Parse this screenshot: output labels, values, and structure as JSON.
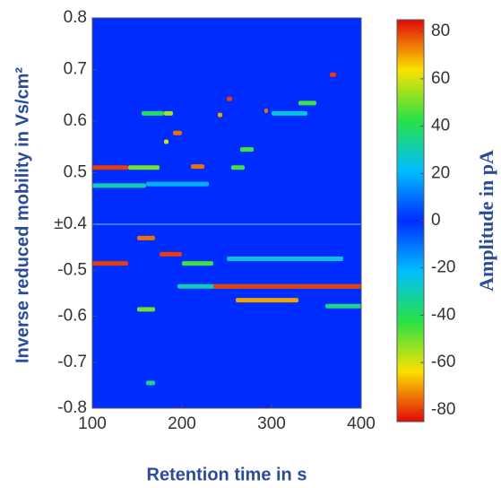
{
  "chart_data": {
    "type": "heatmap",
    "x_label": "Retention time in s",
    "y_label": "Inverse reduced mobility in Vs/cm²",
    "colorbar_label": "Amplitude in pA",
    "xlim": [
      100,
      400
    ],
    "xticks": [
      100,
      200,
      300,
      400
    ],
    "ylim_top": [
      0.4,
      0.8
    ],
    "ylim_bottom": [
      -0.8,
      -0.4
    ],
    "yticks": [
      0.8,
      0.7,
      0.6,
      0.5,
      {
        "value": 0.4,
        "label": "±0.4"
      },
      -0.5,
      -0.6,
      -0.7,
      -0.8
    ],
    "clim": [
      -85,
      85
    ],
    "cticks": [
      80,
      60,
      40,
      20,
      0,
      -20,
      -40,
      -60,
      -80
    ],
    "features": [
      {
        "x": [
          100,
          140
        ],
        "y": 0.51,
        "amp": 80
      },
      {
        "x": [
          140,
          175
        ],
        "y": 0.51,
        "amp": 50
      },
      {
        "x": [
          100,
          160
        ],
        "y": 0.475,
        "amp": 30
      },
      {
        "x": [
          160,
          230
        ],
        "y": 0.478,
        "amp": 20
      },
      {
        "x": [
          155,
          180
        ],
        "y": 0.615,
        "amp": 40
      },
      {
        "x": [
          180,
          190
        ],
        "y": 0.615,
        "amp": 55
      },
      {
        "x": [
          190,
          200
        ],
        "y": 0.577,
        "amp": 75
      },
      {
        "x": [
          180,
          185
        ],
        "y": 0.56,
        "amp": 60
      },
      {
        "x": [
          210,
          225
        ],
        "y": 0.512,
        "amp": 75
      },
      {
        "x": [
          240,
          245
        ],
        "y": 0.612,
        "amp": 70
      },
      {
        "x": [
          250,
          256
        ],
        "y": 0.643,
        "amp": 80
      },
      {
        "x": [
          292,
          296
        ],
        "y": 0.62,
        "amp": 75
      },
      {
        "x": [
          365,
          372
        ],
        "y": 0.69,
        "amp": 80
      },
      {
        "x": [
          330,
          350
        ],
        "y": 0.635,
        "amp": 45
      },
      {
        "x": [
          265,
          280
        ],
        "y": 0.545,
        "amp": 45
      },
      {
        "x": [
          300,
          340
        ],
        "y": 0.615,
        "amp": 25
      },
      {
        "x": [
          255,
          270
        ],
        "y": 0.51,
        "amp": 45
      },
      {
        "x": [
          100,
          140
        ],
        "y": -0.485,
        "amp": -80
      },
      {
        "x": [
          150,
          170
        ],
        "y": -0.43,
        "amp": -75
      },
      {
        "x": [
          175,
          200
        ],
        "y": -0.465,
        "amp": -80
      },
      {
        "x": [
          150,
          170
        ],
        "y": -0.585,
        "amp": -50
      },
      {
        "x": [
          200,
          235
        ],
        "y": -0.485,
        "amp": -45
      },
      {
        "x": [
          195,
          400
        ],
        "y": -0.535,
        "amp": -30
      },
      {
        "x": [
          235,
          400
        ],
        "y": -0.535,
        "amp": -80
      },
      {
        "x": [
          260,
          330
        ],
        "y": -0.565,
        "amp": -70
      },
      {
        "x": [
          160,
          170
        ],
        "y": -0.745,
        "amp": -35
      },
      {
        "x": [
          360,
          400
        ],
        "y": -0.578,
        "amp": -35
      },
      {
        "x": [
          250,
          380
        ],
        "y": -0.475,
        "amp": -25
      }
    ]
  }
}
